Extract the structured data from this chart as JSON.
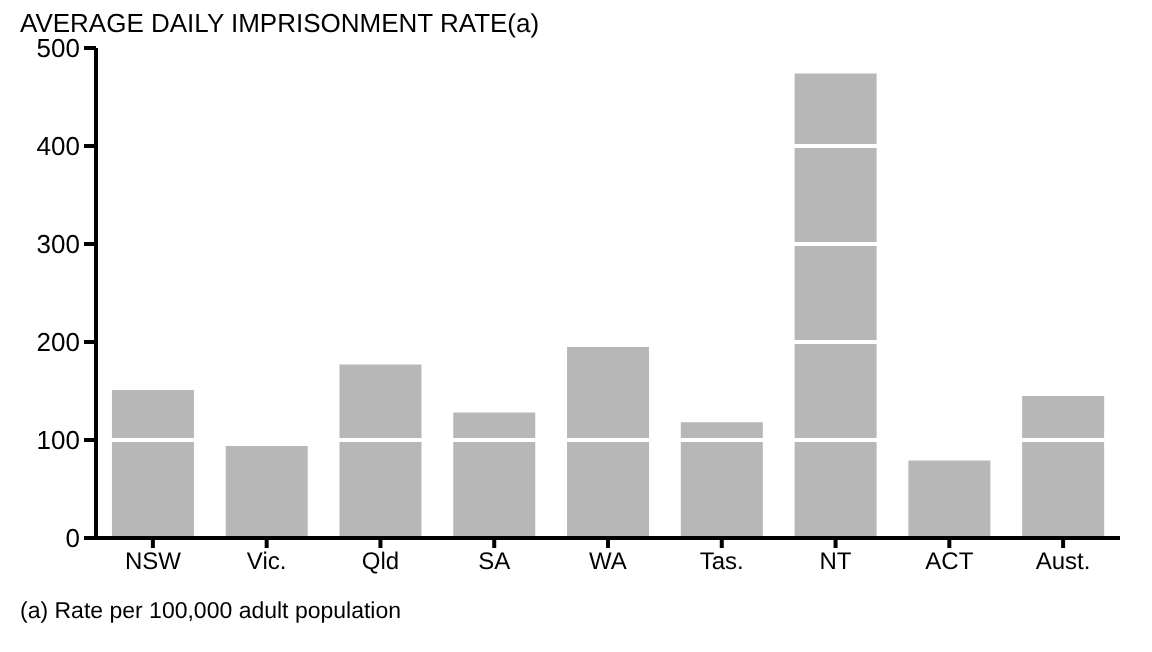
{
  "chart_data": {
    "type": "bar",
    "title": "AVERAGE DAILY IMPRISONMENT RATE(a)",
    "categories": [
      "NSW",
      "Vic.",
      "Qld",
      "SA",
      "WA",
      "Tas.",
      "NT",
      "ACT",
      "Aust."
    ],
    "values": [
      151,
      94,
      177,
      128,
      195,
      118,
      474,
      79,
      145
    ],
    "color": "#b7b7b7",
    "ylim": [
      0,
      500
    ],
    "yticks": [
      0,
      100,
      200,
      300,
      400,
      500
    ],
    "grid": "y",
    "annotations": [
      "(a) Rate per 100,000 adult population"
    ]
  }
}
